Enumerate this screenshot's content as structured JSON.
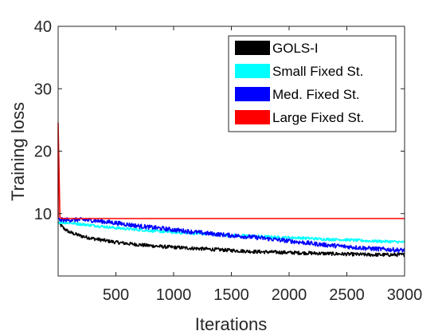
{
  "chart_data": {
    "type": "line",
    "title": "",
    "xlabel": "Iterations",
    "ylabel": "Training loss",
    "xlim": [
      0,
      3000
    ],
    "ylim": [
      0,
      40
    ],
    "xticks": [
      500,
      1000,
      1500,
      2000,
      2500,
      3000
    ],
    "xtick_labels": [
      "500",
      "1000",
      "1500",
      "2000",
      "2500",
      "3000"
    ],
    "yticks": [
      10,
      20,
      30,
      40
    ],
    "ytick_labels": [
      "10",
      "20",
      "30",
      "40"
    ],
    "grid": false,
    "legend_position": "top-right",
    "series": [
      {
        "name": "GOLS-I",
        "color": "#000000",
        "x": [
          0,
          50,
          100,
          200,
          300,
          400,
          500,
          700,
          900,
          1100,
          1300,
          1500,
          1700,
          1900,
          2100,
          2300,
          2500,
          2700,
          2900,
          3000
        ],
        "y": [
          8.6,
          7.6,
          7.0,
          6.4,
          6.0,
          5.7,
          5.4,
          5.0,
          4.7,
          4.5,
          4.3,
          4.1,
          3.9,
          3.8,
          3.7,
          3.6,
          3.5,
          3.4,
          3.4,
          3.4
        ]
      },
      {
        "name": "Small Fixed St.",
        "color": "#00FFFF",
        "x": [
          0,
          100,
          200,
          300,
          400,
          500,
          700,
          900,
          1100,
          1300,
          1500,
          1700,
          1900,
          2100,
          2300,
          2500,
          2700,
          2900,
          3000
        ],
        "y": [
          8.6,
          8.5,
          8.3,
          8.1,
          7.9,
          7.7,
          7.4,
          7.1,
          6.9,
          6.7,
          6.5,
          6.4,
          6.2,
          6.1,
          5.9,
          5.8,
          5.6,
          5.5,
          5.4
        ]
      },
      {
        "name": "Med. Fixed St.",
        "color": "#0000FF",
        "x": [
          0,
          100,
          200,
          300,
          400,
          500,
          700,
          900,
          1100,
          1300,
          1500,
          1700,
          1900,
          2100,
          2300,
          2500,
          2700,
          2900,
          3000
        ],
        "y": [
          9.0,
          9.0,
          9.0,
          8.9,
          8.7,
          8.5,
          8.0,
          7.6,
          7.2,
          6.8,
          6.5,
          6.2,
          5.8,
          5.4,
          5.0,
          4.7,
          4.4,
          4.2,
          4.1
        ]
      },
      {
        "name": "Large Fixed St.",
        "color": "#FF0000",
        "x": [
          0,
          0,
          15,
          30,
          3000
        ],
        "y": [
          9.3,
          24.5,
          9.4,
          9.2,
          9.2
        ]
      }
    ]
  }
}
